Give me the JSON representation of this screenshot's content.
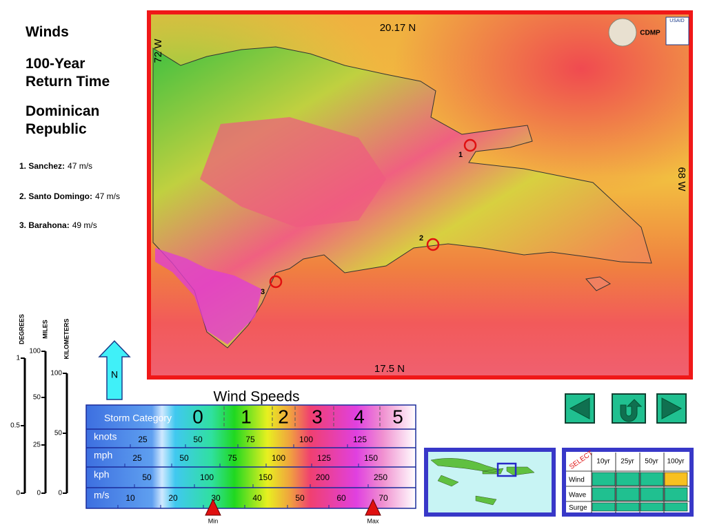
{
  "sidebar": {
    "title": "Winds",
    "subtitle": "100-Year Return Time",
    "region": "Dominican Republic",
    "sites": [
      {
        "name": "1. Sanchez:",
        "value": "47 m/s"
      },
      {
        "name": "2. Santo Domingo:",
        "value": "47 m/s"
      },
      {
        "name": "3. Barahona:",
        "value": "49 m/s"
      }
    ]
  },
  "map": {
    "lat_top": "20.17 N",
    "lat_bottom": "17.5 N",
    "lon_left": "72 W",
    "lon_right": "68 W",
    "agency": "CDMP",
    "donor": "USAID",
    "markers": [
      "1",
      "2",
      "3"
    ]
  },
  "scale_bars": [
    {
      "label": "DEGREES",
      "ticks": [
        "1",
        "0.5",
        "0"
      ]
    },
    {
      "label": "MILES",
      "ticks": [
        "100",
        "50",
        "25",
        "0"
      ]
    },
    {
      "label": "KILOMETERS",
      "ticks": [
        "100",
        "50",
        "0"
      ]
    }
  ],
  "north": "N",
  "legend": {
    "title": "Wind Speeds",
    "category_header": "Storm Category",
    "categories": [
      "0",
      "1",
      "2",
      "3",
      "4",
      "5"
    ],
    "rows": [
      {
        "unit": "knots",
        "ticks": [
          "25",
          "50",
          "75",
          "100",
          "125"
        ]
      },
      {
        "unit": "mph",
        "ticks": [
          "25",
          "50",
          "75",
          "100",
          "125",
          "150"
        ]
      },
      {
        "unit": "kph",
        "ticks": [
          "50",
          "100",
          "150",
          "200",
          "250"
        ]
      },
      {
        "unit": "m/s",
        "ticks": [
          "10",
          "20",
          "30",
          "40",
          "50",
          "60",
          "70"
        ]
      }
    ],
    "min": "Min",
    "max": "Max"
  },
  "selector": {
    "label": "SELECT",
    "columns": [
      "10yr",
      "25yr",
      "50yr",
      "100yr"
    ],
    "rows": [
      "Wind",
      "Wave",
      "Surge"
    ]
  }
}
